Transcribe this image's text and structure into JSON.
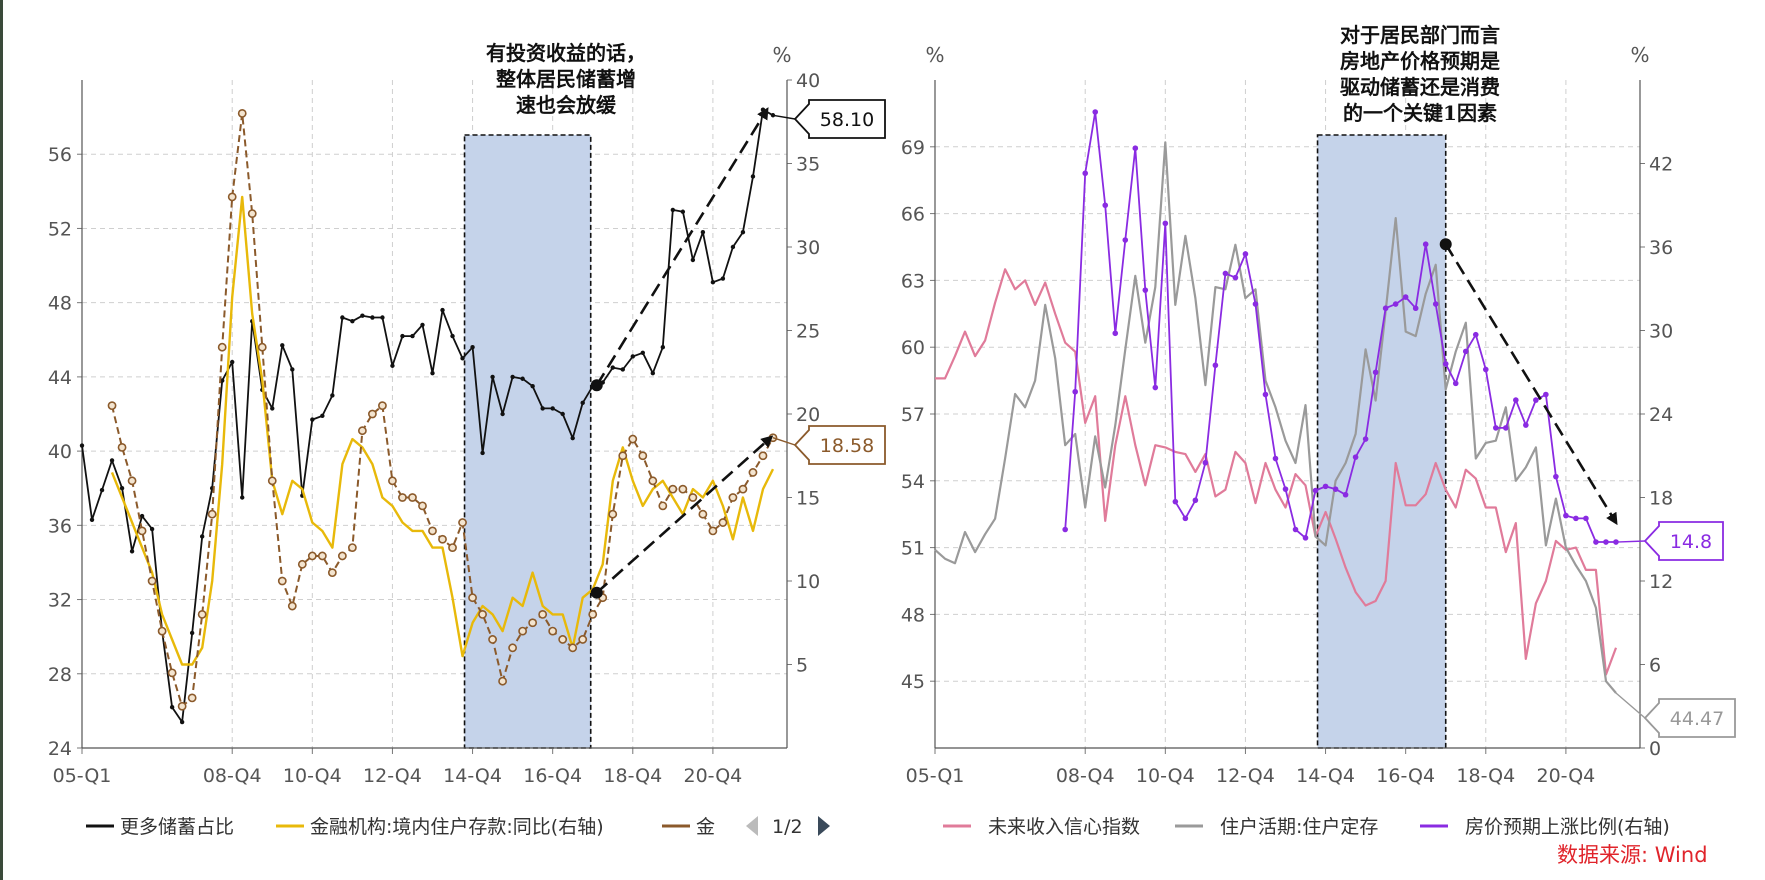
{
  "source_label": "数据来源: Wind",
  "pager_label": "1/2",
  "chart_data": [
    {
      "type": "line",
      "title": "",
      "unit_right": "%",
      "x_ticks": [
        "05-Q1",
        "08-Q4",
        "10-Q4",
        "12-Q4",
        "14-Q4",
        "16-Q4",
        "18-Q4",
        "20-Q4"
      ],
      "y_left": {
        "range": [
          24,
          60
        ],
        "ticks": [
          "24",
          "28",
          "32",
          "36",
          "40",
          "44",
          "48",
          "52",
          "56"
        ]
      },
      "y_right": {
        "range": [
          0,
          40
        ],
        "ticks": [
          "5",
          "10",
          "15",
          "20",
          "25",
          "30",
          "35",
          "40"
        ]
      },
      "shaded_region": {
        "x_start": 14.55,
        "x_end": 17.7
      },
      "annotation_lines": [
        "有投资收益的话，",
        "整体居民储蓄增",
        "速也会放缓"
      ],
      "end_labels": [
        {
          "text": "58.10",
          "color": "#111111"
        },
        {
          "text": "18.58",
          "color": "#8b5a2b"
        }
      ],
      "legend": [
        {
          "label": "更多储蓄占比",
          "color": "#111111"
        },
        {
          "label": "金融机构:境内住户存款:同比(右轴)",
          "color": "#e8b90a"
        },
        {
          "label": "金",
          "color": "#8b5a2b"
        }
      ],
      "series": [
        {
          "name": "更多储蓄占比",
          "axis": "left",
          "color": "#111111",
          "x": [
            5.0,
            5.25,
            5.5,
            5.75,
            6.0,
            6.25,
            6.5,
            6.75,
            7.0,
            7.25,
            7.5,
            7.75,
            8.0,
            8.25,
            8.5,
            8.75,
            9.0,
            9.25,
            9.5,
            9.75,
            10.0,
            10.25,
            10.5,
            10.75,
            11.0,
            11.25,
            11.5,
            11.75,
            12.0,
            12.25,
            12.5,
            12.75,
            13.0,
            13.25,
            13.5,
            13.75,
            14.0,
            14.25,
            14.5,
            14.75,
            15.0,
            15.25,
            15.5,
            15.75,
            16.0,
            16.25,
            16.5,
            16.75,
            17.0,
            17.25,
            17.5,
            17.75,
            18.0,
            18.25,
            18.5,
            18.75,
            19.0,
            19.25,
            19.5,
            19.75,
            20.0,
            20.25,
            20.5,
            20.75,
            21.0,
            21.25,
            21.5,
            21.75,
            22.0,
            22.25
          ],
          "y": [
            40.3,
            36.3,
            37.9,
            39.5,
            38.0,
            34.6,
            36.5,
            35.8,
            30.3,
            26.2,
            25.4,
            30.2,
            35.4,
            38.0,
            43.8,
            44.8,
            37.5,
            47.0,
            43.3,
            42.3,
            45.7,
            44.4,
            37.6,
            41.7,
            41.9,
            43.0,
            47.2,
            47.0,
            47.3,
            47.2,
            47.2,
            44.6,
            46.2,
            46.2,
            46.8,
            44.2,
            47.6,
            46.2,
            45.0,
            45.6,
            39.9,
            44.0,
            42.0,
            44.0,
            43.9,
            43.5,
            42.3,
            42.3,
            42.0,
            40.7,
            42.6,
            43.5,
            43.7,
            44.5,
            44.4,
            45.1,
            45.3,
            44.2,
            45.6,
            53.0,
            52.9,
            50.3,
            51.8,
            49.1,
            49.3,
            51.0,
            51.8,
            54.8,
            58.4,
            58.1
          ]
        },
        {
          "name": "金融机构:境内住户存款:同比(右轴)",
          "axis": "right",
          "color": "#e8b90a",
          "x": [
            5.75,
            6.0,
            6.25,
            6.5,
            6.75,
            7.0,
            7.25,
            7.5,
            7.75,
            8.0,
            8.25,
            8.5,
            8.75,
            9.0,
            9.25,
            9.5,
            9.75,
            10.0,
            10.25,
            10.5,
            10.75,
            11.0,
            11.25,
            11.5,
            11.75,
            12.0,
            12.25,
            12.5,
            12.75,
            13.0,
            13.25,
            13.5,
            13.75,
            14.0,
            14.25,
            14.5,
            14.75,
            15.0,
            15.25,
            15.5,
            15.75,
            16.0,
            16.25,
            16.5,
            16.75,
            17.0,
            17.25,
            17.5,
            17.75,
            18.0,
            18.25,
            18.5,
            18.75,
            19.0,
            19.25,
            19.5,
            19.75,
            20.0,
            20.25,
            20.5,
            20.75,
            21.0,
            21.25,
            21.5,
            21.75,
            22.0,
            22.25
          ],
          "y": [
            16.5,
            15.0,
            13.5,
            12.0,
            10.5,
            8.0,
            6.5,
            5.0,
            5.0,
            6.0,
            10.0,
            17.0,
            27.0,
            33.0,
            26.0,
            22.0,
            16.0,
            14.0,
            16.0,
            15.5,
            13.5,
            13.0,
            12.0,
            17.0,
            18.5,
            18.0,
            17.0,
            15.0,
            14.5,
            13.5,
            13.0,
            13.0,
            12.0,
            12.0,
            9.0,
            5.5,
            7.5,
            8.5,
            8.0,
            7.0,
            9.0,
            8.5,
            10.5,
            8.5,
            8.0,
            8.0,
            6.0,
            9.0,
            9.5,
            11.0,
            16.0,
            18.0,
            16.0,
            14.5,
            15.5,
            16.0,
            15.0,
            14.0,
            15.5,
            15.0,
            16.0,
            14.5,
            12.5,
            15.0,
            13.0,
            15.5,
            16.7
          ]
        },
        {
          "name": "金",
          "axis": "right",
          "color": "#8b5a2b",
          "x": [
            5.75,
            6.0,
            6.25,
            6.5,
            6.75,
            7.0,
            7.25,
            7.5,
            7.75,
            8.0,
            8.25,
            8.5,
            8.75,
            9.0,
            9.25,
            9.5,
            9.75,
            10.0,
            10.25,
            10.5,
            10.75,
            11.0,
            11.25,
            11.5,
            11.75,
            12.0,
            12.25,
            12.5,
            12.75,
            13.0,
            13.25,
            13.5,
            13.75,
            14.0,
            14.25,
            14.5,
            14.75,
            15.0,
            15.25,
            15.5,
            15.75,
            16.0,
            16.25,
            16.5,
            16.75,
            17.0,
            17.25,
            17.5,
            17.75,
            18.0,
            18.25,
            18.5,
            18.75,
            19.0,
            19.25,
            19.5,
            19.75,
            20.0,
            20.25,
            20.5,
            20.75,
            21.0,
            21.25,
            21.5,
            21.75,
            22.0,
            22.25
          ],
          "y": [
            20.5,
            18.0,
            16.0,
            13.0,
            10.0,
            7.0,
            4.5,
            2.5,
            3.0,
            8.0,
            14.0,
            24.0,
            33.0,
            38.0,
            32.0,
            24.0,
            16.0,
            10.0,
            8.5,
            11.0,
            11.5,
            11.5,
            10.5,
            11.5,
            12.0,
            19.0,
            20.0,
            20.5,
            16.0,
            15.0,
            15.0,
            14.5,
            13.0,
            12.5,
            12.0,
            13.5,
            9.0,
            8.0,
            6.5,
            4.0,
            6.0,
            7.0,
            7.5,
            8.0,
            7.0,
            6.5,
            6.0,
            6.5,
            8.0,
            9.0,
            14.0,
            17.5,
            18.5,
            17.5,
            16.0,
            14.5,
            15.5,
            15.5,
            15.0,
            14.0,
            13.0,
            13.5,
            15.0,
            15.5,
            16.5,
            17.5,
            18.58
          ]
        }
      ]
    },
    {
      "type": "line",
      "title": "",
      "unit_left": "%",
      "unit_right": "%",
      "x_ticks": [
        "05-Q1",
        "08-Q4",
        "10-Q4",
        "12-Q4",
        "14-Q4",
        "16-Q4",
        "18-Q4",
        "20-Q4"
      ],
      "y_left": {
        "range": [
          42,
          72
        ],
        "ticks": [
          "45",
          "48",
          "51",
          "54",
          "57",
          "60",
          "63",
          "66",
          "69"
        ]
      },
      "y_right": {
        "range": [
          0,
          48
        ],
        "ticks": [
          "0",
          "6",
          "12",
          "18",
          "24",
          "30",
          "36",
          "42"
        ]
      },
      "shaded_region": {
        "x_start": 14.55,
        "x_end": 17.75
      },
      "annotation_lines": [
        "对于居民部门而言",
        "房地产价格预期是",
        "驱动储蓄还是消费",
        "的一个关键1因素"
      ],
      "end_labels": [
        {
          "text": "14.8",
          "color": "#8a2be2"
        },
        {
          "text": "44.47",
          "color": "#999999"
        }
      ],
      "legend": [
        {
          "label": "未来收入信心指数",
          "color": "#e07b9a"
        },
        {
          "label": "住户活期:住户定存",
          "color": "#9a9a9a"
        },
        {
          "label": "房价预期上涨比例(右轴)",
          "color": "#8a2be2"
        }
      ],
      "series": [
        {
          "name": "未来收入信心指数",
          "axis": "left",
          "color": "#e07b9a",
          "x": [
            5.0,
            5.25,
            5.5,
            5.75,
            6.0,
            6.25,
            6.5,
            6.75,
            7.0,
            7.25,
            7.5,
            7.75,
            8.0,
            8.25,
            8.5,
            8.75,
            9.0,
            9.25,
            9.5,
            9.75,
            10.0,
            10.25,
            10.5,
            10.75,
            11.0,
            11.25,
            11.5,
            11.75,
            12.0,
            12.25,
            12.5,
            12.75,
            13.0,
            13.25,
            13.5,
            13.75,
            14.0,
            14.25,
            14.5,
            14.75,
            15.0,
            15.25,
            15.5,
            15.75,
            16.0,
            16.25,
            16.5,
            16.75,
            17.0,
            17.25,
            17.5,
            17.75,
            18.0,
            18.25,
            18.5,
            18.75,
            19.0,
            19.25,
            19.5,
            19.75,
            20.0,
            20.25,
            20.5,
            20.75,
            21.0,
            21.25,
            21.5,
            21.75,
            22.0
          ],
          "y": [
            58.6,
            58.6,
            59.6,
            60.7,
            59.6,
            60.3,
            62.0,
            63.5,
            62.6,
            63.0,
            61.9,
            62.9,
            61.5,
            60.2,
            59.8,
            56.6,
            57.8,
            52.2,
            55.6,
            57.8,
            55.6,
            53.8,
            55.6,
            55.5,
            55.3,
            55.2,
            54.4,
            55.2,
            53.3,
            53.6,
            55.3,
            54.8,
            53.0,
            54.8,
            53.6,
            52.8,
            54.3,
            53.8,
            51.5,
            52.6,
            51.4,
            50.1,
            49.0,
            48.4,
            48.6,
            49.5,
            54.8,
            52.9,
            52.9,
            53.4,
            54.8,
            53.6,
            52.8,
            54.5,
            54.1,
            52.8,
            52.8,
            50.8,
            52.1,
            46.0,
            48.5,
            49.5,
            51.3,
            50.9,
            51.0,
            50.0,
            50.0,
            45.3,
            46.5
          ]
        },
        {
          "name": "住户活期:住户定存",
          "axis": "left",
          "color": "#9a9a9a",
          "x": [
            5.0,
            5.25,
            5.5,
            5.75,
            6.0,
            6.25,
            6.5,
            6.75,
            7.0,
            7.25,
            7.5,
            7.75,
            8.0,
            8.25,
            8.5,
            8.75,
            9.0,
            9.25,
            9.5,
            9.75,
            10.0,
            10.25,
            10.5,
            10.75,
            11.0,
            11.25,
            11.5,
            11.75,
            12.0,
            12.25,
            12.5,
            12.75,
            13.0,
            13.25,
            13.5,
            13.75,
            14.0,
            14.25,
            14.5,
            14.75,
            15.0,
            15.25,
            15.5,
            15.75,
            16.0,
            16.25,
            16.5,
            16.75,
            17.0,
            17.25,
            17.5,
            17.75,
            18.0,
            18.25,
            18.5,
            18.75,
            19.0,
            19.25,
            19.5,
            19.75,
            20.0,
            20.25,
            20.5,
            20.75,
            21.0,
            21.25,
            21.5,
            21.75,
            22.0
          ],
          "y": [
            50.9,
            50.5,
            50.3,
            51.7,
            50.8,
            51.6,
            52.3,
            55.0,
            57.9,
            57.3,
            58.5,
            61.9,
            59.5,
            55.6,
            56.1,
            52.8,
            56.0,
            53.7,
            56.5,
            59.9,
            63.2,
            60.2,
            62.7,
            69.2,
            61.9,
            65.0,
            62.2,
            58.3,
            62.7,
            62.6,
            64.6,
            62.2,
            62.6,
            58.5,
            57.3,
            55.8,
            54.8,
            57.4,
            51.5,
            51.1,
            54.0,
            54.8,
            56.1,
            59.9,
            57.6,
            61.6,
            65.8,
            60.7,
            60.5,
            62.4,
            63.7,
            58.1,
            59.8,
            61.1,
            55.0,
            55.7,
            55.8,
            57.3,
            54.0,
            54.6,
            55.5,
            51.1,
            53.2,
            51.0,
            50.2,
            49.5,
            48.3,
            45.0,
            44.47
          ]
        },
        {
          "name": "房价预期上涨比例(右轴)",
          "axis": "right",
          "color": "#8a2be2",
          "x": [
            8.25,
            8.5,
            8.75,
            9.0,
            9.25,
            9.5,
            9.75,
            10.0,
            10.25,
            10.5,
            10.75,
            11.0,
            11.25,
            11.5,
            11.75,
            12.0,
            12.25,
            12.5,
            12.75,
            13.0,
            13.25,
            13.5,
            13.75,
            14.0,
            14.25,
            14.5,
            14.75,
            15.0,
            15.25,
            15.5,
            15.75,
            16.0,
            16.25,
            16.5,
            16.75,
            17.0,
            17.25,
            17.5,
            17.75,
            18.0,
            18.25,
            18.5,
            18.75,
            19.0,
            19.25,
            19.5,
            19.75,
            20.0,
            20.25,
            20.5,
            20.75,
            21.0,
            21.25,
            21.5,
            21.75,
            22.0
          ],
          "y": [
            15.7,
            25.6,
            41.3,
            45.7,
            39.0,
            29.8,
            36.5,
            43.1,
            32.9,
            25.9,
            37.7,
            17.7,
            16.5,
            17.8,
            20.5,
            27.5,
            34.1,
            33.8,
            35.5,
            31.9,
            25.4,
            20.8,
            18.6,
            15.7,
            15.1,
            18.5,
            18.8,
            18.6,
            18.2,
            20.9,
            22.2,
            27.0,
            31.6,
            31.9,
            32.4,
            31.6,
            36.2,
            31.9,
            27.6,
            26.2,
            28.5,
            29.7,
            27.2,
            23.0,
            23.0,
            25.0,
            23.2,
            25.0,
            25.4,
            19.5,
            16.7,
            16.5,
            16.5,
            14.8,
            14.8,
            14.8
          ]
        }
      ]
    }
  ]
}
